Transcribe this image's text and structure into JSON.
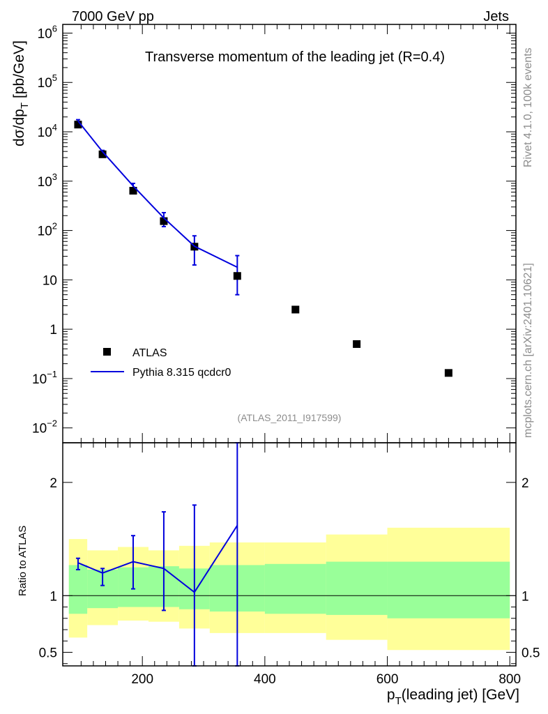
{
  "header": {
    "left": "7000 GeV pp",
    "right": "Jets",
    "side_top": "Rivet 4.1.0,  100k events",
    "side_bottom": "mcplots.cern.ch [arXiv:2401.10621]"
  },
  "chart_data": [
    {
      "type": "scatter",
      "panel": "main",
      "title": "Transverse momentum of the leading jet (R=0.4)",
      "ylabel_main": "dσ/dp",
      "ylabel_sub": "T",
      "ylabel_unit": "[pb/GeV]",
      "yscale": "log",
      "ylim": [
        0.005,
        1500000
      ],
      "xlim": [
        70,
        810
      ],
      "ytick_labels": [
        {
          "value": 0.01,
          "base": "10",
          "exp": "−2"
        },
        {
          "value": 0.1,
          "base": "10",
          "exp": "−1"
        },
        {
          "value": 1,
          "base": "1",
          "exp": ""
        },
        {
          "value": 10,
          "base": "10",
          "exp": ""
        },
        {
          "value": 100,
          "base": "10",
          "exp": "2"
        },
        {
          "value": 1000,
          "base": "10",
          "exp": "3"
        },
        {
          "value": 10000,
          "base": "10",
          "exp": "4"
        },
        {
          "value": 100000,
          "base": "10",
          "exp": "5"
        },
        {
          "value": 1000000,
          "base": "10",
          "exp": "6"
        }
      ],
      "legend": [
        {
          "label": "ATLAS"
        },
        {
          "label": "Pythia 8.315 qcdcr0"
        }
      ],
      "watermark": "(ATLAS_2011_I917599)",
      "series": [
        {
          "name": "ATLAS",
          "color": "#000000",
          "x": [
            95,
            135,
            185,
            235,
            285,
            355,
            450,
            550,
            700
          ],
          "y": [
            14000,
            3500,
            640,
            155,
            47,
            12,
            2.5,
            0.5,
            0.13
          ]
        },
        {
          "name": "Pythia 8.315 qcdcr0",
          "color": "#0000dd",
          "x": [
            95,
            135,
            185,
            235,
            285,
            355
          ],
          "y": [
            16500,
            3950,
            800,
            180,
            48,
            18
          ],
          "err_low": [
            13800,
            3300,
            650,
            120,
            20,
            5
          ],
          "err_high": [
            17600,
            4200,
            900,
            230,
            78,
            31
          ]
        }
      ]
    },
    {
      "type": "line",
      "panel": "ratio",
      "ylabel": "Ratio to ATLAS",
      "xlabel_main": "p",
      "xlabel_sub": "T",
      "xlabel_rest": "(leading jet) [GeV]",
      "ylim": [
        0.38,
        2.35
      ],
      "xlim": [
        70,
        810
      ],
      "xticks": [
        200,
        400,
        600,
        800
      ],
      "yticks": [
        0.5,
        1,
        2
      ],
      "ytick_labels": [
        "0.5",
        "1",
        "2"
      ],
      "xtick_labels": [
        "200",
        "400",
        "600",
        "800"
      ],
      "bands": {
        "edges": [
          80,
          110,
          160,
          210,
          260,
          310,
          400,
          500,
          600,
          800
        ],
        "yellow_low": [
          0.63,
          0.74,
          0.78,
          0.77,
          0.71,
          0.67,
          0.67,
          0.61,
          0.52
        ],
        "yellow_high": [
          1.5,
          1.4,
          1.43,
          1.4,
          1.44,
          1.47,
          1.47,
          1.54,
          1.6
        ],
        "green_low": [
          0.84,
          0.89,
          0.9,
          0.9,
          0.88,
          0.86,
          0.84,
          0.83,
          0.8
        ],
        "green_high": [
          1.27,
          1.23,
          1.25,
          1.26,
          1.24,
          1.27,
          1.28,
          1.3,
          1.3
        ]
      },
      "series": [
        {
          "name": "Pythia 8.315 qcdcr0",
          "color": "#0000dd",
          "x": [
            95,
            135,
            185,
            235,
            285,
            355
          ],
          "y": [
            1.29,
            1.2,
            1.3,
            1.24,
            1.03,
            1.62
          ],
          "err_low": [
            1.23,
            1.09,
            1.06,
            0.87,
            0.38,
            0.38
          ],
          "err_high": [
            1.33,
            1.24,
            1.53,
            1.74,
            1.8,
            2.35
          ]
        }
      ],
      "band_colors": {
        "yellow": "#ffff99",
        "green": "#99ff99"
      }
    }
  ]
}
